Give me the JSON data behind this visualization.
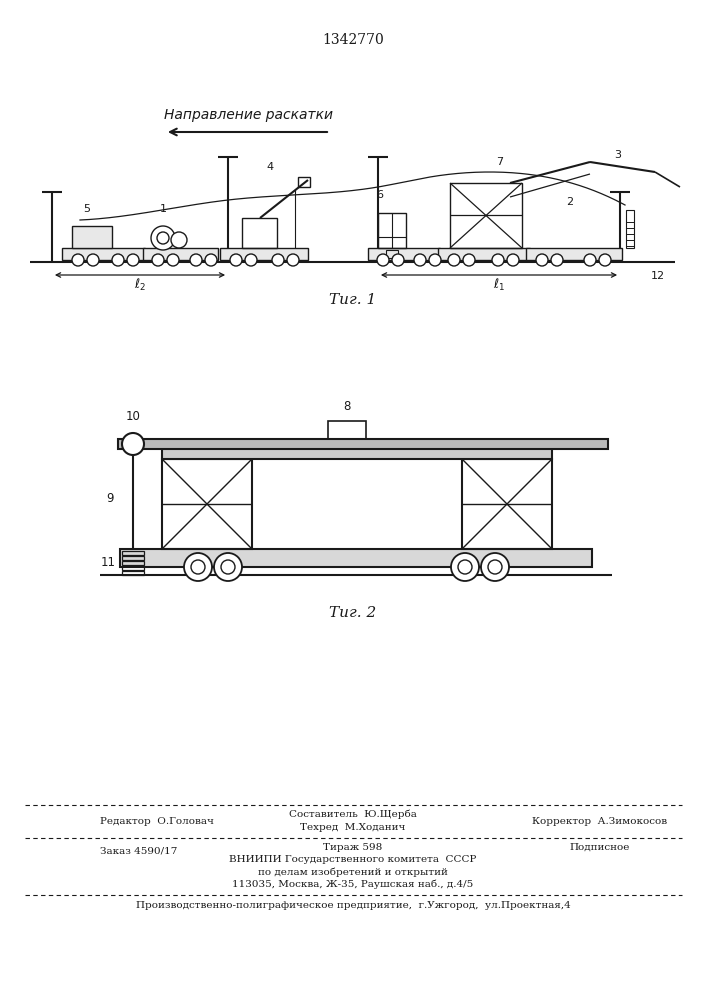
{
  "patent_number": "1342770",
  "fig1_caption": "Τиг. 1",
  "fig2_caption": "Τиг. 2",
  "direction_label": "Направление раскатки",
  "footer_editor": "Редактор  О.Головач",
  "footer_composer": "Составитель  Ю.Щерба",
  "footer_techred": "Техред  М.Ходанич",
  "footer_corrector": "Корректор  А.Зимокосов",
  "footer_order": "Заказ 4590/17",
  "footer_tirazh": "Тираж 598",
  "footer_podpisnoe": "Подписное",
  "footer_vniip1": "ВНИИПИ Государственного комитета  СССР",
  "footer_vniip2": "по делам изобретений и открытий",
  "footer_vniip3": "113035, Москва, Ж-35, Раушская наб., д.4/5",
  "footer_bottom": "Производственно-полиграфическое предприятие,  г.Ужгород,  ул.Проектная,4",
  "bg_color": "#ffffff",
  "lc": "#1a1a1a"
}
